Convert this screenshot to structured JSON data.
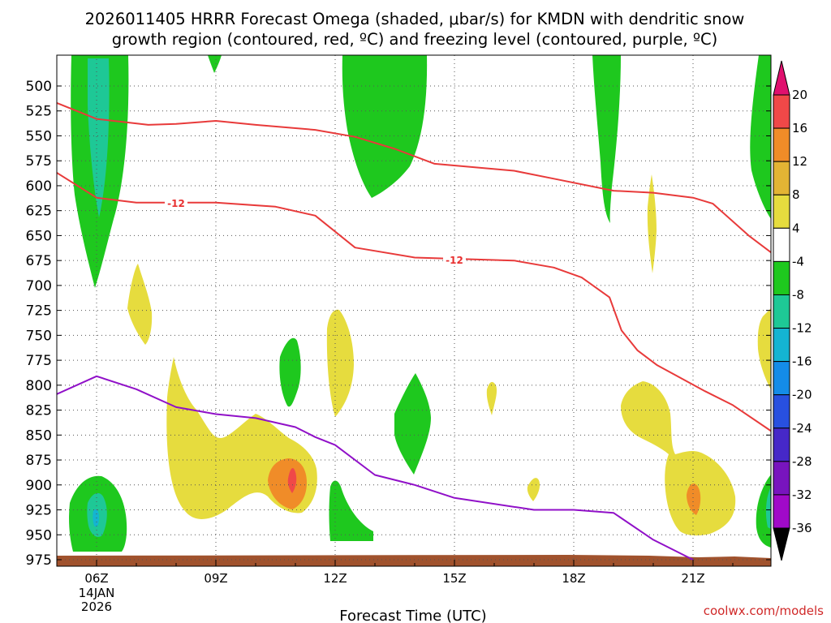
{
  "chart_data": {
    "type": "heatmap",
    "title_line1": "2026011405 HRRR Forecast Omega (shaded, μbar/s) for KMDN with dendritic snow",
    "title_line2": "growth region (contoured, red, ºC) and freezing level (contoured, purple, ºC)",
    "xlabel": "Forecast Time (UTC)",
    "x_ticks": [
      {
        "hour": 6,
        "label": "06Z",
        "sub1": "14JAN",
        "sub2": "2026"
      },
      {
        "hour": 9,
        "label": "09Z"
      },
      {
        "hour": 12,
        "label": "12Z"
      },
      {
        "hour": 15,
        "label": "15Z"
      },
      {
        "hour": 18,
        "label": "18Z"
      },
      {
        "hour": 21,
        "label": "21Z"
      }
    ],
    "x_range_hours": [
      5,
      23
    ],
    "y_levels_mb": [
      500,
      525,
      550,
      575,
      600,
      625,
      650,
      675,
      700,
      725,
      750,
      775,
      800,
      825,
      850,
      875,
      900,
      925,
      950,
      975
    ],
    "y_tick_labels": [
      "500",
      "525",
      "550",
      "575",
      "600",
      "625",
      "650",
      "675",
      "700",
      "725",
      "750",
      "775",
      "800",
      "825",
      "850",
      "875",
      "900",
      "925",
      "950",
      "975"
    ],
    "colorbar": {
      "labels": [
        "20",
        "16",
        "12",
        "8",
        "4",
        "-4",
        "-8",
        "-12",
        "-16",
        "-20",
        "-24",
        "-28",
        "-32",
        "-36"
      ],
      "colors": [
        "#e0106e",
        "#f04848",
        "#f08c28",
        "#e3b434",
        "#e6dc3e",
        "#ffffff",
        "#1ec81e",
        "#1ec896",
        "#14b4d2",
        "#148ce8",
        "#2850e0",
        "#4628c8",
        "#7814be",
        "#a00ac8",
        "#a0a0a0",
        "#000000"
      ]
    },
    "contours": {
      "dgz_label": "-12",
      "dgz_label_right": "-12",
      "dgz_upper_mb": [
        [
          5.0,
          517
        ],
        [
          6.0,
          533
        ],
        [
          7.3,
          539
        ],
        [
          8.0,
          538
        ],
        [
          9.0,
          535
        ],
        [
          10.0,
          539
        ],
        [
          11.5,
          544
        ],
        [
          12.5,
          551
        ],
        [
          13.5,
          563
        ],
        [
          14.5,
          578
        ],
        [
          16.5,
          585
        ],
        [
          17.5,
          593
        ],
        [
          19.0,
          605
        ],
        [
          20.0,
          607
        ],
        [
          21.0,
          612
        ],
        [
          21.5,
          618
        ],
        [
          22.4,
          650
        ],
        [
          23.0,
          668
        ]
      ],
      "dgz_lower_mb": [
        [
          5.0,
          587
        ],
        [
          6.0,
          612
        ],
        [
          7.0,
          617
        ],
        [
          9.0,
          617
        ],
        [
          10.5,
          621
        ],
        [
          11.5,
          630
        ],
        [
          12.5,
          662
        ],
        [
          14.0,
          672
        ],
        [
          16.5,
          675
        ],
        [
          17.5,
          682
        ],
        [
          18.2,
          692
        ],
        [
          18.9,
          712
        ],
        [
          19.2,
          745
        ],
        [
          19.6,
          765
        ],
        [
          20.1,
          780
        ],
        [
          21.3,
          806
        ],
        [
          22.0,
          820
        ],
        [
          23.0,
          847
        ]
      ],
      "freezing_level_mb": [
        [
          5.0,
          809
        ],
        [
          6.0,
          791
        ],
        [
          7.0,
          804
        ],
        [
          8.0,
          822
        ],
        [
          9.0,
          829
        ],
        [
          10.0,
          833
        ],
        [
          11.0,
          842
        ],
        [
          11.5,
          852
        ],
        [
          12.0,
          860
        ],
        [
          13.0,
          890
        ],
        [
          14.0,
          900
        ],
        [
          15.0,
          913
        ],
        [
          17.0,
          925
        ],
        [
          18.0,
          925
        ],
        [
          19.0,
          928
        ],
        [
          20.0,
          955
        ],
        [
          21.0,
          975
        ]
      ]
    }
  },
  "credit": "coolwx.com/models"
}
